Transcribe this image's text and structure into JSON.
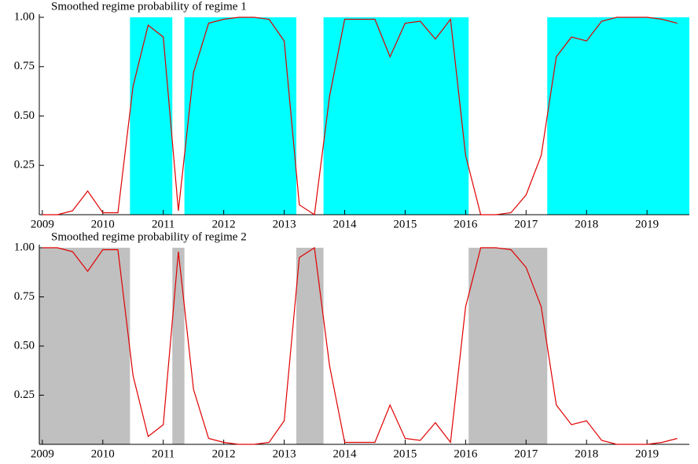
{
  "chart_data": [
    {
      "type": "line",
      "title": "Smoothed regime probability of regime 1",
      "x": [
        2009,
        2009.25,
        2009.5,
        2009.75,
        2010,
        2010.25,
        2010.5,
        2010.75,
        2011,
        2011.25,
        2011.5,
        2011.75,
        2012,
        2012.25,
        2012.5,
        2012.75,
        2013,
        2013.25,
        2013.5,
        2013.75,
        2014,
        2014.25,
        2014.5,
        2014.75,
        2015,
        2015.25,
        2015.5,
        2015.75,
        2016,
        2016.25,
        2016.5,
        2016.75,
        2017,
        2017.25,
        2017.5,
        2017.75,
        2018,
        2018.25,
        2018.5,
        2018.75,
        2019,
        2019.25,
        2019.5
      ],
      "series": [
        {
          "color": "#e00000",
          "values": [
            0,
            0,
            0.02,
            0.12,
            0.01,
            0.01,
            0.65,
            0.96,
            0.9,
            0.02,
            0.72,
            0.97,
            0.99,
            1,
            1,
            0.99,
            0.88,
            0.05,
            0,
            0.6,
            0.99,
            0.99,
            0.99,
            0.8,
            0.97,
            0.98,
            0.89,
            0.99,
            0.3,
            0,
            0,
            0.01,
            0.1,
            0.3,
            0.8,
            0.9,
            0.88,
            0.98,
            1,
            1,
            1,
            0.99,
            0.97
          ]
        }
      ],
      "shaded": [
        [
          2010.45,
          2011.15
        ],
        [
          2011.35,
          2013.2
        ],
        [
          2013.65,
          2016.05
        ],
        [
          2017.35,
          2019.7
        ]
      ],
      "shade_color": "#00ffff",
      "xlim": [
        2008.95,
        2019.7
      ],
      "xticks": [
        2009,
        2010,
        2011,
        2012,
        2013,
        2014,
        2015,
        2016,
        2017,
        2018,
        2019
      ],
      "ylim": [
        0,
        1
      ],
      "yticks": [
        0.25,
        {
          "value": 0.5,
          "label": "0.50"
        },
        0.75,
        {
          "value": 1,
          "label": "1.00"
        }
      ]
    },
    {
      "type": "line",
      "title": "Smoothed regime probability of regime 2",
      "x": [
        2009,
        2009.25,
        2009.5,
        2009.75,
        2010,
        2010.25,
        2010.5,
        2010.75,
        2011,
        2011.25,
        2011.5,
        2011.75,
        2012,
        2012.25,
        2012.5,
        2012.75,
        2013,
        2013.25,
        2013.5,
        2013.75,
        2014,
        2014.25,
        2014.5,
        2014.75,
        2015,
        2015.25,
        2015.5,
        2015.75,
        2016,
        2016.25,
        2016.5,
        2016.75,
        2017,
        2017.25,
        2017.5,
        2017.75,
        2018,
        2018.25,
        2018.5,
        2018.75,
        2019,
        2019.25,
        2019.5
      ],
      "series": [
        {
          "color": "#e00000",
          "values": [
            1,
            1,
            0.98,
            0.88,
            0.99,
            0.99,
            0.35,
            0.04,
            0.1,
            0.98,
            0.28,
            0.03,
            0.01,
            0,
            0,
            0.01,
            0.12,
            0.95,
            1,
            0.4,
            0.01,
            0.01,
            0.01,
            0.2,
            0.03,
            0.02,
            0.11,
            0.01,
            0.7,
            1,
            1,
            0.99,
            0.9,
            0.7,
            0.2,
            0.1,
            0.12,
            0.02,
            0,
            0,
            0,
            0.01,
            0.03
          ]
        }
      ],
      "shaded": [
        [
          2008.95,
          2010.45
        ],
        [
          2011.15,
          2011.35
        ],
        [
          2013.2,
          2013.65
        ],
        [
          2016.05,
          2017.35
        ]
      ],
      "shade_color": "#c0c0c0",
      "xlim": [
        2008.95,
        2019.7
      ],
      "xticks": [
        2009,
        2010,
        2011,
        2012,
        2013,
        2014,
        2015,
        2016,
        2017,
        2018,
        2019
      ],
      "ylim": [
        0,
        1
      ],
      "yticks": [
        0.25,
        {
          "value": 0.5,
          "label": "0.50"
        },
        0.75,
        {
          "value": 1,
          "label": "1.00"
        }
      ]
    }
  ]
}
